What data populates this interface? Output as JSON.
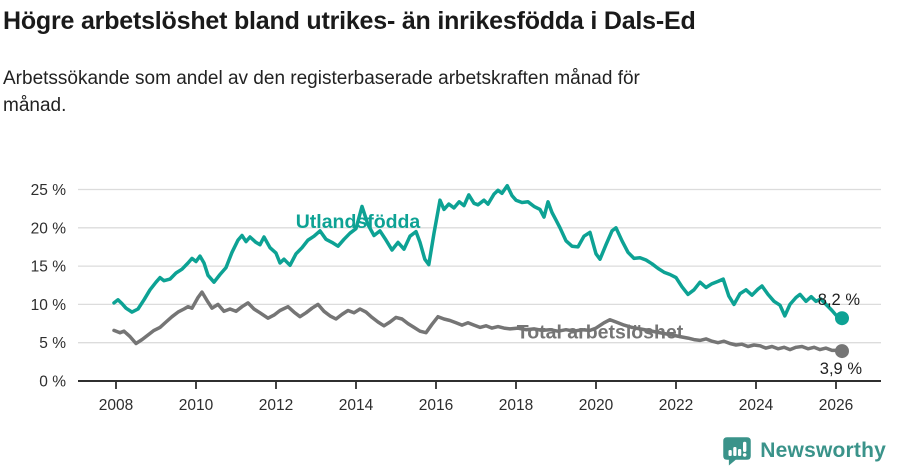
{
  "header": {
    "title": "Högre arbetslöshet bland utrikes- än inrikesfödda i Dals-Ed",
    "subtitle": "Arbetssökande som andel av den registerbaserade arbetskraften månad för månad.",
    "subtitle_line1": "Arbetssökande som andel av den registerbaserade arbetskraften månad för",
    "subtitle_line2": "månad."
  },
  "footer": {
    "brand": "Newsworthy",
    "brand_color": "#3A938A",
    "logo_icon": "speech-bubble-bar-chart"
  },
  "chart_data": {
    "type": "line",
    "title": "Högre arbetslöshet bland utrikes- än inrikesfödda i Dals-Ed",
    "subtitle": "Arbetssökande som andel av den registerbaserade arbetskraften månad för månad.",
    "grid": true,
    "legend_position": "inline-labels",
    "ylim": [
      0,
      26
    ],
    "xlim": [
      2007.9,
      2026.6
    ],
    "y_axis": {
      "ticks": [
        {
          "value": 0,
          "label": "0 %"
        },
        {
          "value": 5,
          "label": "5 %"
        },
        {
          "value": 10,
          "label": "10 %"
        },
        {
          "value": 15,
          "label": "15 %"
        },
        {
          "value": 20,
          "label": "20 %"
        },
        {
          "value": 25,
          "label": "25 %"
        }
      ]
    },
    "x_axis": {
      "ticks": [
        {
          "value": 2008,
          "label": "2008"
        },
        {
          "value": 2010,
          "label": "2010"
        },
        {
          "value": 2012,
          "label": "2012"
        },
        {
          "value": 2014,
          "label": "2014"
        },
        {
          "value": 2016,
          "label": "2016"
        },
        {
          "value": 2018,
          "label": "2018"
        },
        {
          "value": 2020,
          "label": "2020"
        },
        {
          "value": 2022,
          "label": "2022"
        },
        {
          "value": 2024,
          "label": "2024"
        },
        {
          "value": 2026,
          "label": "2026"
        }
      ]
    },
    "series": [
      {
        "id": "utlandsfodda",
        "name": "Utlandsfödda",
        "color": "#0DA294",
        "end_label": "8,2 %",
        "end_value": 8.2,
        "label_at": [
          2014.05,
          20.8
        ],
        "points": [
          [
            2007.95,
            10.2
          ],
          [
            2008.05,
            10.6
          ],
          [
            2008.15,
            10.1
          ],
          [
            2008.25,
            9.5
          ],
          [
            2008.4,
            9.0
          ],
          [
            2008.55,
            9.4
          ],
          [
            2008.7,
            10.6
          ],
          [
            2008.85,
            11.9
          ],
          [
            2009.0,
            12.9
          ],
          [
            2009.1,
            13.5
          ],
          [
            2009.2,
            13.1
          ],
          [
            2009.35,
            13.3
          ],
          [
            2009.5,
            14.1
          ],
          [
            2009.65,
            14.6
          ],
          [
            2009.8,
            15.4
          ],
          [
            2009.9,
            16.0
          ],
          [
            2010.0,
            15.6
          ],
          [
            2010.1,
            16.3
          ],
          [
            2010.2,
            15.4
          ],
          [
            2010.3,
            13.8
          ],
          [
            2010.45,
            12.9
          ],
          [
            2010.6,
            13.9
          ],
          [
            2010.75,
            14.8
          ],
          [
            2010.9,
            16.8
          ],
          [
            2011.05,
            18.4
          ],
          [
            2011.15,
            19.0
          ],
          [
            2011.25,
            18.2
          ],
          [
            2011.35,
            18.8
          ],
          [
            2011.5,
            18.1
          ],
          [
            2011.6,
            17.8
          ],
          [
            2011.7,
            18.8
          ],
          [
            2011.85,
            17.4
          ],
          [
            2012.0,
            16.7
          ],
          [
            2012.1,
            15.4
          ],
          [
            2012.2,
            15.9
          ],
          [
            2012.35,
            15.1
          ],
          [
            2012.5,
            16.6
          ],
          [
            2012.65,
            17.4
          ],
          [
            2012.8,
            18.4
          ],
          [
            2012.95,
            18.9
          ],
          [
            2013.1,
            19.6
          ],
          [
            2013.25,
            18.5
          ],
          [
            2013.4,
            18.1
          ],
          [
            2013.55,
            17.6
          ],
          [
            2013.7,
            18.5
          ],
          [
            2013.85,
            19.3
          ],
          [
            2014.0,
            19.9
          ],
          [
            2014.15,
            22.8
          ],
          [
            2014.3,
            20.4
          ],
          [
            2014.45,
            19.0
          ],
          [
            2014.6,
            19.6
          ],
          [
            2014.75,
            18.4
          ],
          [
            2014.9,
            17.1
          ],
          [
            2015.05,
            18.1
          ],
          [
            2015.2,
            17.2
          ],
          [
            2015.35,
            18.9
          ],
          [
            2015.5,
            19.5
          ],
          [
            2015.6,
            18.1
          ],
          [
            2015.72,
            15.9
          ],
          [
            2015.82,
            15.2
          ],
          [
            2015.95,
            19.3
          ],
          [
            2016.1,
            23.6
          ],
          [
            2016.2,
            22.4
          ],
          [
            2016.32,
            23.1
          ],
          [
            2016.45,
            22.6
          ],
          [
            2016.58,
            23.4
          ],
          [
            2016.7,
            22.9
          ],
          [
            2016.82,
            24.3
          ],
          [
            2016.95,
            23.2
          ],
          [
            2017.05,
            23.0
          ],
          [
            2017.2,
            23.6
          ],
          [
            2017.3,
            23.1
          ],
          [
            2017.45,
            24.4
          ],
          [
            2017.55,
            24.9
          ],
          [
            2017.65,
            24.5
          ],
          [
            2017.78,
            25.5
          ],
          [
            2017.9,
            24.2
          ],
          [
            2018.0,
            23.6
          ],
          [
            2018.15,
            23.3
          ],
          [
            2018.3,
            23.4
          ],
          [
            2018.45,
            22.8
          ],
          [
            2018.6,
            22.4
          ],
          [
            2018.7,
            21.4
          ],
          [
            2018.8,
            23.4
          ],
          [
            2018.9,
            22.0
          ],
          [
            2019.0,
            21.0
          ],
          [
            2019.1,
            20.0
          ],
          [
            2019.25,
            18.3
          ],
          [
            2019.4,
            17.6
          ],
          [
            2019.55,
            17.5
          ],
          [
            2019.7,
            18.9
          ],
          [
            2019.85,
            19.4
          ],
          [
            2020.0,
            16.6
          ],
          [
            2020.1,
            15.9
          ],
          [
            2020.25,
            17.8
          ],
          [
            2020.4,
            19.6
          ],
          [
            2020.5,
            20.0
          ],
          [
            2020.65,
            18.3
          ],
          [
            2020.8,
            16.8
          ],
          [
            2020.95,
            16.0
          ],
          [
            2021.1,
            16.1
          ],
          [
            2021.25,
            15.8
          ],
          [
            2021.4,
            15.3
          ],
          [
            2021.55,
            14.7
          ],
          [
            2021.7,
            14.2
          ],
          [
            2021.85,
            13.9
          ],
          [
            2022.0,
            13.5
          ],
          [
            2022.15,
            12.3
          ],
          [
            2022.3,
            11.3
          ],
          [
            2022.45,
            11.9
          ],
          [
            2022.6,
            12.9
          ],
          [
            2022.75,
            12.2
          ],
          [
            2022.9,
            12.7
          ],
          [
            2023.05,
            13.0
          ],
          [
            2023.18,
            13.3
          ],
          [
            2023.32,
            11.1
          ],
          [
            2023.45,
            10.0
          ],
          [
            2023.6,
            11.4
          ],
          [
            2023.75,
            11.9
          ],
          [
            2023.9,
            11.2
          ],
          [
            2024.05,
            12.0
          ],
          [
            2024.15,
            12.4
          ],
          [
            2024.3,
            11.3
          ],
          [
            2024.45,
            10.4
          ],
          [
            2024.6,
            9.9
          ],
          [
            2024.72,
            8.5
          ],
          [
            2024.85,
            10.0
          ],
          [
            2025.0,
            10.9
          ],
          [
            2025.1,
            11.3
          ],
          [
            2025.25,
            10.4
          ],
          [
            2025.38,
            11.0
          ],
          [
            2025.5,
            10.4
          ],
          [
            2025.62,
            10.7
          ],
          [
            2025.75,
            10.0
          ],
          [
            2025.9,
            9.2
          ],
          [
            2026.0,
            8.6
          ],
          [
            2026.15,
            8.2
          ]
        ]
      },
      {
        "id": "total",
        "name": "Total arbetslöshet",
        "color": "#757575",
        "end_label": "3,9 %",
        "end_value": 3.9,
        "label_at": [
          2020.1,
          6.4
        ],
        "points": [
          [
            2007.95,
            6.6
          ],
          [
            2008.1,
            6.3
          ],
          [
            2008.2,
            6.5
          ],
          [
            2008.35,
            5.8
          ],
          [
            2008.5,
            4.9
          ],
          [
            2008.65,
            5.4
          ],
          [
            2008.8,
            6.0
          ],
          [
            2008.95,
            6.6
          ],
          [
            2009.1,
            7.0
          ],
          [
            2009.25,
            7.7
          ],
          [
            2009.4,
            8.4
          ],
          [
            2009.55,
            9.0
          ],
          [
            2009.7,
            9.4
          ],
          [
            2009.8,
            9.7
          ],
          [
            2009.9,
            9.5
          ],
          [
            2010.05,
            10.9
          ],
          [
            2010.15,
            11.6
          ],
          [
            2010.3,
            10.3
          ],
          [
            2010.4,
            9.5
          ],
          [
            2010.55,
            10.0
          ],
          [
            2010.7,
            9.1
          ],
          [
            2010.85,
            9.4
          ],
          [
            2011.0,
            9.1
          ],
          [
            2011.15,
            9.7
          ],
          [
            2011.3,
            10.2
          ],
          [
            2011.45,
            9.4
          ],
          [
            2011.6,
            8.9
          ],
          [
            2011.8,
            8.2
          ],
          [
            2011.95,
            8.6
          ],
          [
            2012.1,
            9.2
          ],
          [
            2012.3,
            9.7
          ],
          [
            2012.45,
            9.0
          ],
          [
            2012.6,
            8.4
          ],
          [
            2012.75,
            8.9
          ],
          [
            2012.9,
            9.5
          ],
          [
            2013.05,
            10.0
          ],
          [
            2013.2,
            9.1
          ],
          [
            2013.35,
            8.5
          ],
          [
            2013.5,
            8.1
          ],
          [
            2013.65,
            8.7
          ],
          [
            2013.8,
            9.2
          ],
          [
            2013.95,
            8.9
          ],
          [
            2014.1,
            9.4
          ],
          [
            2014.25,
            9.0
          ],
          [
            2014.4,
            8.3
          ],
          [
            2014.55,
            7.7
          ],
          [
            2014.7,
            7.2
          ],
          [
            2014.85,
            7.7
          ],
          [
            2015.0,
            8.3
          ],
          [
            2015.15,
            8.1
          ],
          [
            2015.3,
            7.5
          ],
          [
            2015.45,
            7.0
          ],
          [
            2015.6,
            6.5
          ],
          [
            2015.75,
            6.3
          ],
          [
            2015.9,
            7.4
          ],
          [
            2016.05,
            8.4
          ],
          [
            2016.2,
            8.1
          ],
          [
            2016.35,
            7.9
          ],
          [
            2016.5,
            7.6
          ],
          [
            2016.65,
            7.3
          ],
          [
            2016.8,
            7.6
          ],
          [
            2016.95,
            7.3
          ],
          [
            2017.1,
            7.0
          ],
          [
            2017.25,
            7.2
          ],
          [
            2017.4,
            6.9
          ],
          [
            2017.55,
            7.1
          ],
          [
            2017.7,
            6.9
          ],
          [
            2017.85,
            6.8
          ],
          [
            2018.05,
            6.9
          ],
          [
            2018.25,
            6.7
          ],
          [
            2018.45,
            6.8
          ],
          [
            2018.65,
            6.6
          ],
          [
            2018.85,
            6.7
          ],
          [
            2019.05,
            6.5
          ],
          [
            2019.25,
            6.7
          ],
          [
            2019.45,
            6.5
          ],
          [
            2019.65,
            6.7
          ],
          [
            2019.85,
            6.6
          ],
          [
            2020.0,
            6.9
          ],
          [
            2020.2,
            7.6
          ],
          [
            2020.35,
            8.0
          ],
          [
            2020.5,
            7.7
          ],
          [
            2020.7,
            7.3
          ],
          [
            2020.9,
            7.0
          ],
          [
            2021.1,
            6.8
          ],
          [
            2021.3,
            6.6
          ],
          [
            2021.5,
            6.4
          ],
          [
            2021.7,
            6.2
          ],
          [
            2021.9,
            6.0
          ],
          [
            2022.1,
            5.8
          ],
          [
            2022.3,
            5.6
          ],
          [
            2022.45,
            5.4
          ],
          [
            2022.6,
            5.3
          ],
          [
            2022.75,
            5.5
          ],
          [
            2022.9,
            5.2
          ],
          [
            2023.05,
            5.0
          ],
          [
            2023.2,
            5.2
          ],
          [
            2023.35,
            4.9
          ],
          [
            2023.5,
            4.7
          ],
          [
            2023.65,
            4.8
          ],
          [
            2023.8,
            4.5
          ],
          [
            2023.95,
            4.7
          ],
          [
            2024.1,
            4.6
          ],
          [
            2024.25,
            4.3
          ],
          [
            2024.4,
            4.5
          ],
          [
            2024.55,
            4.2
          ],
          [
            2024.7,
            4.4
          ],
          [
            2024.85,
            4.1
          ],
          [
            2025.0,
            4.4
          ],
          [
            2025.15,
            4.5
          ],
          [
            2025.3,
            4.2
          ],
          [
            2025.45,
            4.4
          ],
          [
            2025.6,
            4.1
          ],
          [
            2025.75,
            4.3
          ],
          [
            2025.9,
            4.0
          ],
          [
            2026.05,
            4.0
          ],
          [
            2026.15,
            3.9
          ]
        ]
      }
    ]
  }
}
